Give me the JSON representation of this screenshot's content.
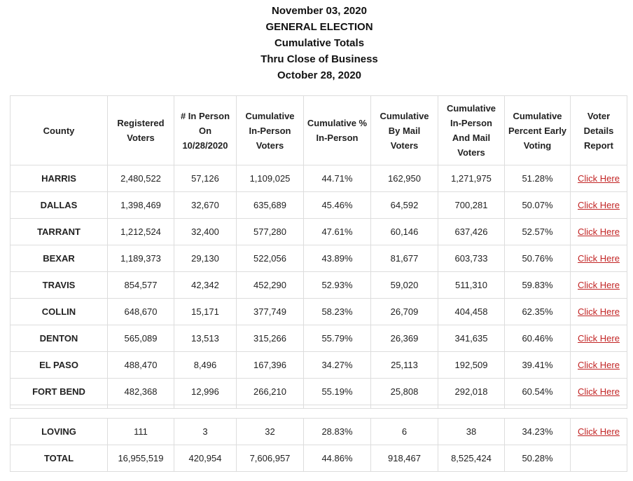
{
  "header": {
    "lines": [
      "November 03, 2020",
      "GENERAL ELECTION",
      "Cumulative Totals",
      "Thru Close of Business",
      "October 28, 2020"
    ]
  },
  "table": {
    "columns": [
      "County",
      "Registered Voters",
      "# In Person On 10/28/2020",
      "Cumulative In-Person Voters",
      "Cumulative % In-Person",
      "Cumulative By Mail Voters",
      "Cumulative In-Person And Mail Voters",
      "Cumulative Percent Early Voting",
      "Voter Details Report"
    ],
    "rows": [
      {
        "county": "HARRIS",
        "registered": "2,480,522",
        "in_person_day": "57,126",
        "cum_in_person": "1,109,025",
        "pct_in_person": "44.71%",
        "by_mail": "162,950",
        "in_person_and_mail": "1,271,975",
        "pct_early": "51.28%",
        "link": "Click Here"
      },
      {
        "county": "DALLAS",
        "registered": "1,398,469",
        "in_person_day": "32,670",
        "cum_in_person": "635,689",
        "pct_in_person": "45.46%",
        "by_mail": "64,592",
        "in_person_and_mail": "700,281",
        "pct_early": "50.07%",
        "link": "Click Here"
      },
      {
        "county": "TARRANT",
        "registered": "1,212,524",
        "in_person_day": "32,400",
        "cum_in_person": "577,280",
        "pct_in_person": "47.61%",
        "by_mail": "60,146",
        "in_person_and_mail": "637,426",
        "pct_early": "52.57%",
        "link": "Click Here"
      },
      {
        "county": "BEXAR",
        "registered": "1,189,373",
        "in_person_day": "29,130",
        "cum_in_person": "522,056",
        "pct_in_person": "43.89%",
        "by_mail": "81,677",
        "in_person_and_mail": "603,733",
        "pct_early": "50.76%",
        "link": "Click Here"
      },
      {
        "county": "TRAVIS",
        "registered": "854,577",
        "in_person_day": "42,342",
        "cum_in_person": "452,290",
        "pct_in_person": "52.93%",
        "by_mail": "59,020",
        "in_person_and_mail": "511,310",
        "pct_early": "59.83%",
        "link": "Click Here"
      },
      {
        "county": "COLLIN",
        "registered": "648,670",
        "in_person_day": "15,171",
        "cum_in_person": "377,749",
        "pct_in_person": "58.23%",
        "by_mail": "26,709",
        "in_person_and_mail": "404,458",
        "pct_early": "62.35%",
        "link": "Click Here"
      },
      {
        "county": "DENTON",
        "registered": "565,089",
        "in_person_day": "13,513",
        "cum_in_person": "315,266",
        "pct_in_person": "55.79%",
        "by_mail": "26,369",
        "in_person_and_mail": "341,635",
        "pct_early": "60.46%",
        "link": "Click Here"
      },
      {
        "county": "EL PASO",
        "registered": "488,470",
        "in_person_day": "8,496",
        "cum_in_person": "167,396",
        "pct_in_person": "34.27%",
        "by_mail": "25,113",
        "in_person_and_mail": "192,509",
        "pct_early": "39.41%",
        "link": "Click Here"
      },
      {
        "county": "FORT BEND",
        "registered": "482,368",
        "in_person_day": "12,996",
        "cum_in_person": "266,210",
        "pct_in_person": "55.19%",
        "by_mail": "25,808",
        "in_person_and_mail": "292,018",
        "pct_early": "60.54%",
        "link": "Click Here"
      }
    ],
    "bottom_rows": [
      {
        "county": "LOVING",
        "registered": "111",
        "in_person_day": "3",
        "cum_in_person": "32",
        "pct_in_person": "28.83%",
        "by_mail": "6",
        "in_person_and_mail": "38",
        "pct_early": "34.23%",
        "link": "Click Here"
      }
    ],
    "total": {
      "label": "TOTAL",
      "registered": "16,955,519",
      "in_person_day": "420,954",
      "cum_in_person": "7,606,957",
      "pct_in_person": "44.86%",
      "by_mail": "918,467",
      "in_person_and_mail": "8,525,424",
      "pct_early": "50.28%"
    }
  }
}
